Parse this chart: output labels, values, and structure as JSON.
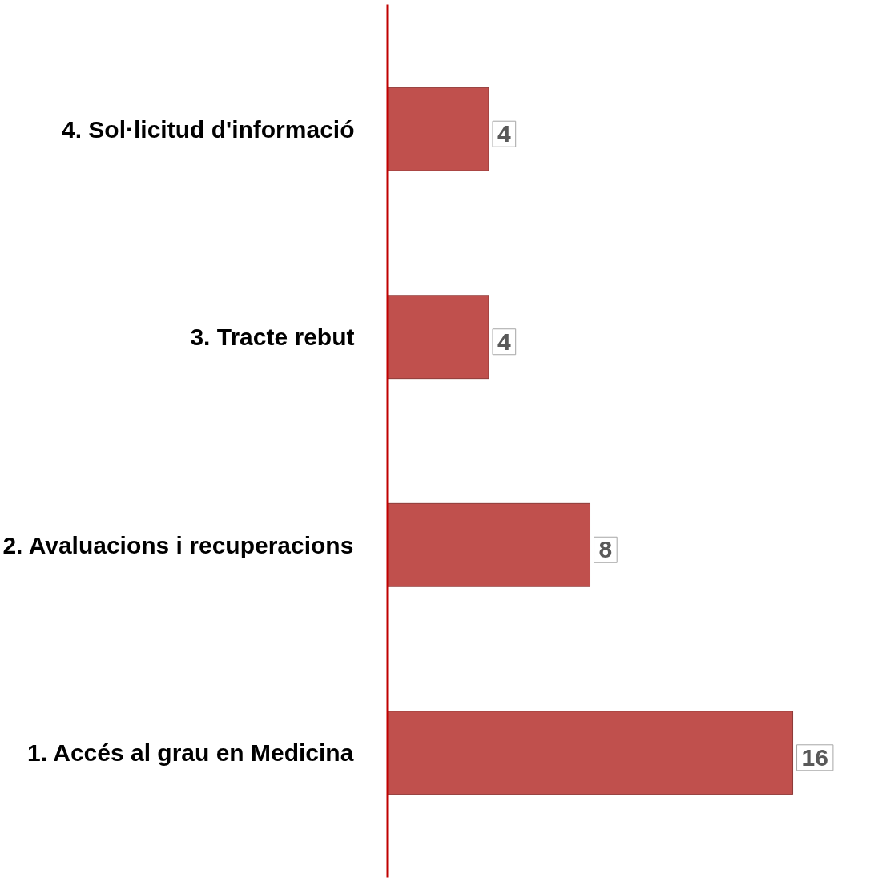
{
  "chart_data": {
    "type": "bar",
    "orientation": "horizontal",
    "categories": [
      "4. Sol·licitud d'informació",
      "3. Tracte rebut",
      "2. Avaluacions i recuperacions",
      "1. Accés al grau en Medicina"
    ],
    "values": [
      4,
      4,
      8,
      16
    ],
    "color": "#c0504d",
    "data_labels": true,
    "grid": false
  }
}
